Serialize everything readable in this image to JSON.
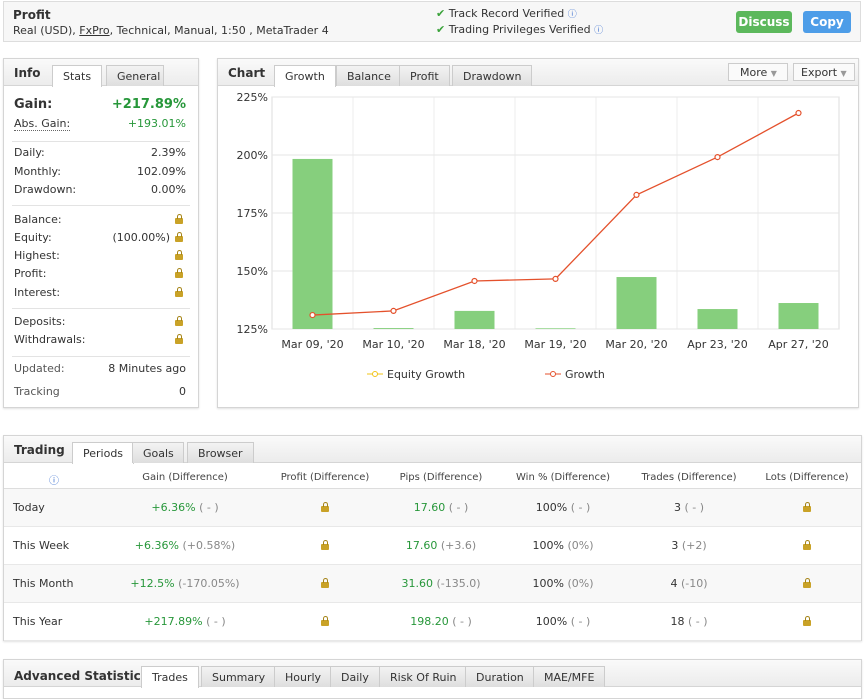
{
  "header": {
    "title": "Profit",
    "account": "Real (USD), ",
    "broker": "FxPro",
    "details": ", Technical, Manual, 1:50 , MetaTrader 4",
    "verifications": [
      "Track Record Verified",
      "Trading Privileges Verified"
    ],
    "buttons": [
      "Discuss",
      "Copy"
    ]
  },
  "info": {
    "title": "Info",
    "tabs": [
      "Stats",
      "General"
    ],
    "rows": [
      {
        "label": "Gain:",
        "value": "+217.89%"
      },
      {
        "label": "Abs. Gain:",
        "value": "+193.01%"
      },
      {
        "label": "Daily:",
        "value": "2.39%"
      },
      {
        "label": "Monthly:",
        "value": "102.09%"
      },
      {
        "label": "Drawdown:",
        "value": "0.00%"
      },
      {
        "label": "Balance:"
      },
      {
        "label": "Equity:",
        "value": "(100.00%)"
      },
      {
        "label": "Highest:"
      },
      {
        "label": "Profit:"
      },
      {
        "label": "Interest:"
      },
      {
        "label": "Deposits:"
      },
      {
        "label": "Withdrawals:"
      },
      {
        "label": "Updated:",
        "value": "8 Minutes ago"
      },
      {
        "label": "Tracking",
        "value": "0"
      }
    ]
  },
  "chart_panel": {
    "title": "Chart",
    "tabs": [
      "Growth",
      "Balance",
      "Profit",
      "Drawdown"
    ],
    "menus": [
      "More",
      "Export"
    ]
  },
  "chart_data": {
    "type": "bar_line",
    "categories": [
      "Mar 09, '20",
      "Mar 10, '20",
      "Mar 18, '20",
      "Mar 19, '20",
      "Mar 20, '20",
      "Apr 23, '20",
      "Apr 27, '20"
    ],
    "ylim": [
      125,
      225
    ],
    "yticks": [
      {
        "value": 125,
        "label": "125%"
      },
      {
        "value": 150,
        "label": "150%"
      },
      {
        "value": 175,
        "label": "175%"
      },
      {
        "value": 200,
        "label": "200%"
      },
      {
        "value": 225,
        "label": "225%"
      }
    ],
    "series": [
      {
        "type": "bar",
        "color": "#86cf7d",
        "values": [
          198.3,
          125.4,
          132.8,
          125.3,
          147.4,
          133.6,
          136.2
        ]
      },
      {
        "type": "line",
        "name": "Equity Growth",
        "color": "#f0c419",
        "values": [
          null,
          null,
          null,
          null,
          null,
          null,
          null
        ]
      },
      {
        "type": "line",
        "name": "Growth",
        "color": "#e4512c",
        "values": [
          131.0,
          132.8,
          145.7,
          146.6,
          182.8,
          199.1,
          218.1
        ]
      }
    ],
    "legend": "bottom"
  },
  "trading": {
    "title": "Trading",
    "tabs": [
      "Periods",
      "Goals",
      "Browser"
    ],
    "columns": [
      "Gain (Difference)",
      "Profit (Difference)",
      "Pips (Difference)",
      "Win % (Difference)",
      "Trades (Difference)",
      "Lots (Difference)"
    ],
    "rows": [
      {
        "label": "Today",
        "gain": "+6.36%",
        "gain_diff": "( - )",
        "pips": "17.60",
        "pips_diff": "( - )",
        "win": "100%",
        "win_diff": "( - )",
        "trades": "3",
        "trades_diff": "( - )"
      },
      {
        "label": "This Week",
        "gain": "+6.36%",
        "gain_diff": "(+0.58%)",
        "pips": "17.60",
        "pips_diff": "(+3.6)",
        "win": "100%",
        "win_diff": "(0%)",
        "trades": "3",
        "trades_diff": "(+2)"
      },
      {
        "label": "This Month",
        "gain": "+12.5%",
        "gain_diff": "(-170.05%)",
        "pips": "31.60",
        "pips_diff": "(-135.0)",
        "win": "100%",
        "win_diff": "(0%)",
        "trades": "4",
        "trades_diff": "(-10)"
      },
      {
        "label": "This Year",
        "gain": "+217.89%",
        "gain_diff": "( - )",
        "pips": "198.20",
        "pips_diff": "( - )",
        "win": "100%",
        "win_diff": "( - )",
        "trades": "18",
        "trades_diff": "( - )"
      }
    ]
  },
  "advanced": {
    "title": "Advanced Statistics",
    "tabs": [
      "Trades",
      "Summary",
      "Hourly",
      "Daily",
      "Risk Of Ruin",
      "Duration",
      "MAE/MFE"
    ]
  }
}
